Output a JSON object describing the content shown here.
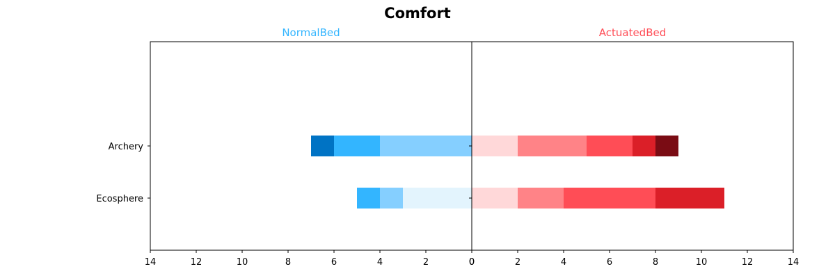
{
  "chart_data": {
    "type": "bar",
    "orientation": "horizontal-diverging-stacked",
    "title": "Comfort",
    "categories": [
      "Archery",
      "Ecosphere"
    ],
    "xlim": [
      0,
      14
    ],
    "ticks": [
      0,
      2,
      4,
      6,
      8,
      10,
      12,
      14
    ],
    "panels": [
      {
        "name": "NormalBed",
        "direction": "left",
        "title_color": "#33b5ff",
        "colors": [
          "#e3f4fd",
          "#85cfff",
          "#33b5ff",
          "#0073c4"
        ],
        "series": [
          {
            "category": "Archery",
            "segments": [
              0,
              4,
              2,
              1
            ]
          },
          {
            "category": "Ecosphere",
            "segments": [
              3,
              1,
              1,
              0
            ]
          }
        ]
      },
      {
        "name": "ActuatedBed",
        "direction": "right",
        "title_color": "#ff4d56",
        "colors": [
          "#ffd8d9",
          "#ff8387",
          "#ff4d56",
          "#db1f28",
          "#7a0c14"
        ],
        "series": [
          {
            "category": "Archery",
            "segments": [
              2,
              3,
              2,
              1,
              1
            ]
          },
          {
            "category": "Ecosphere",
            "segments": [
              2,
              2,
              4,
              3,
              0
            ]
          }
        ]
      }
    ]
  }
}
